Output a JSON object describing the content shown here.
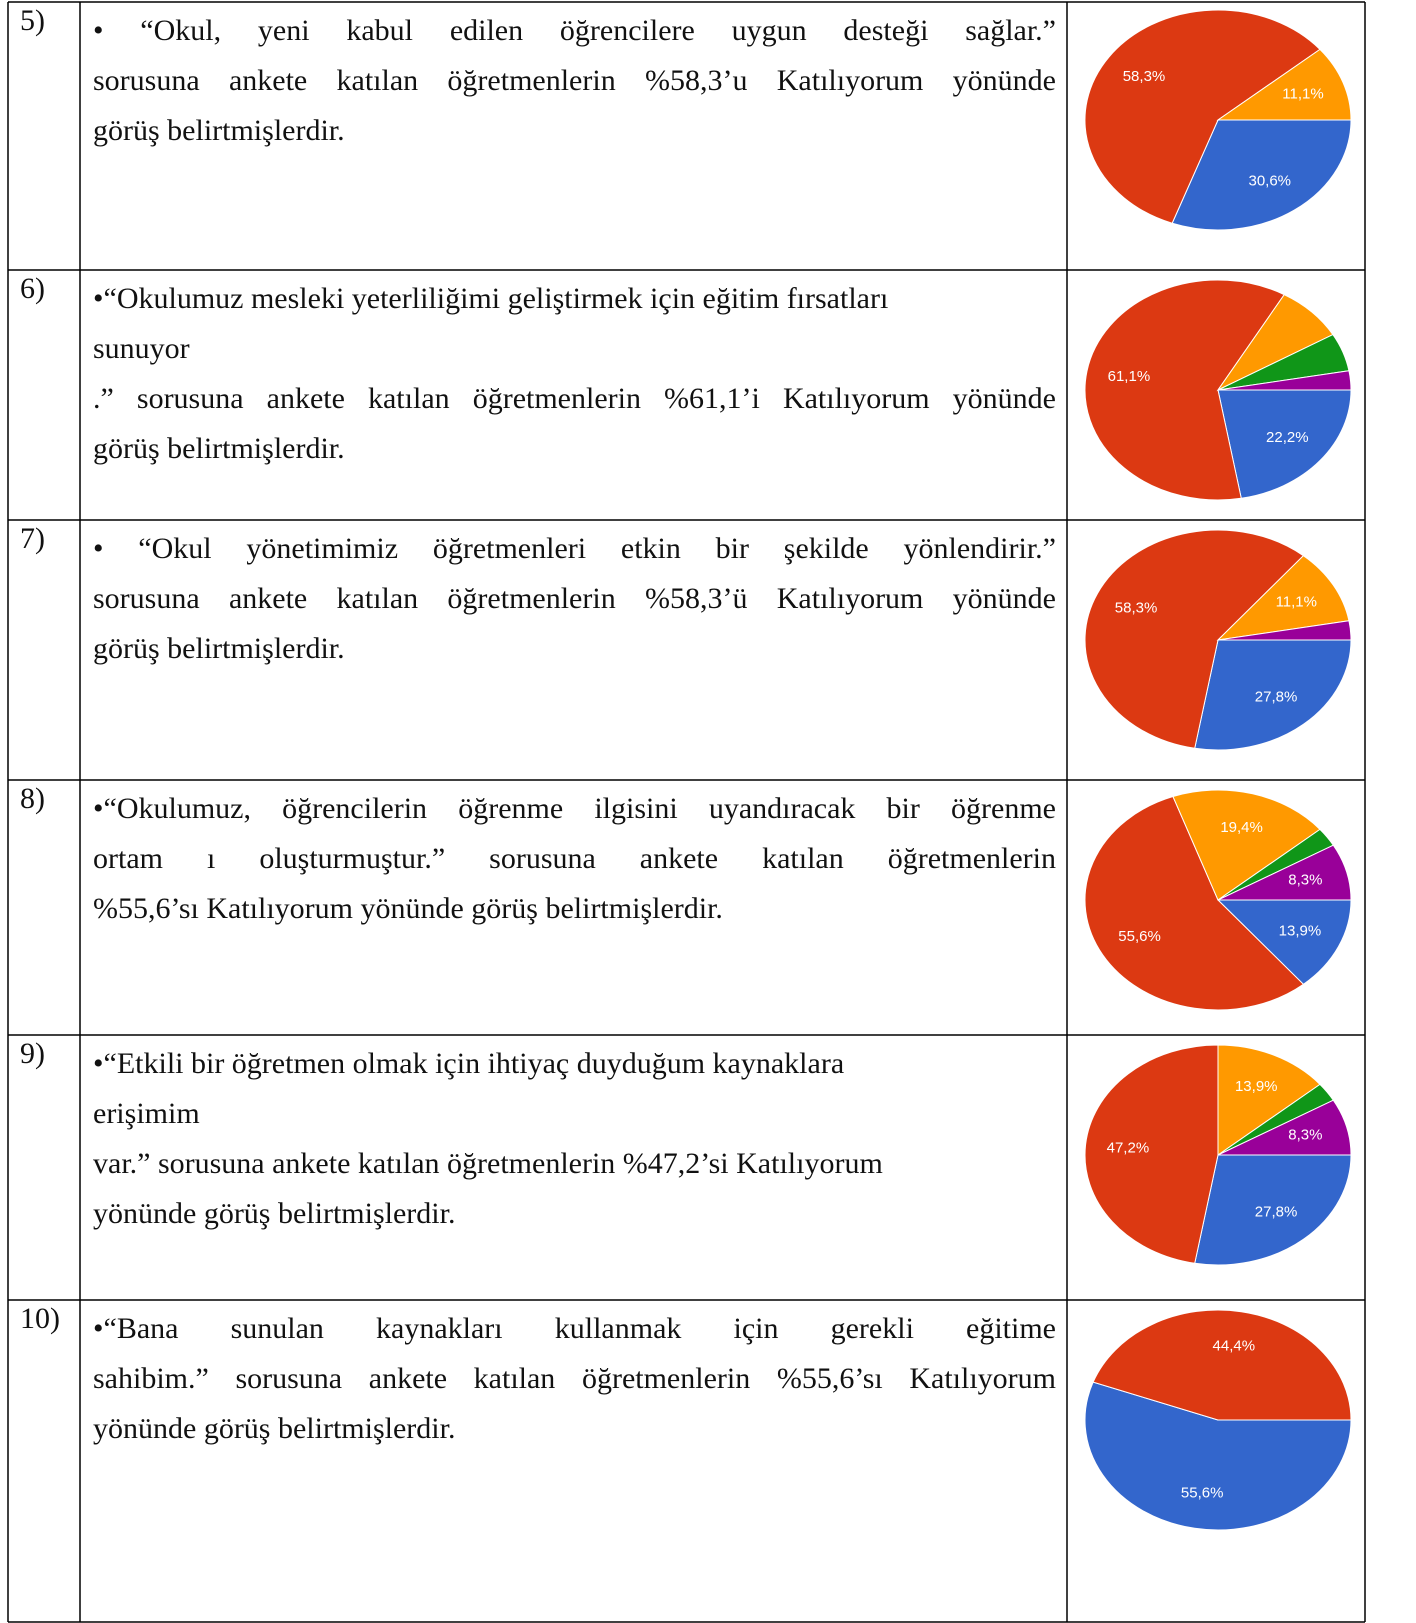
{
  "rows": [
    {
      "number": "5)",
      "paragraphs": [
        [
          "•   “Okul, yeni kabul edilen öğrencilere uygun desteği sağlar.”",
          "sorusuna ankete katılan öğretmenlerin %58,3’u Katılıyorum yönünde",
          "görüş belirtmişlerdir."
        ]
      ],
      "chart": {
        "type": "pie",
        "values": [
          30.6,
          58.3,
          11.1
        ],
        "value_labels": [
          "30,6%",
          "58,3%",
          "11,1%"
        ],
        "colors": [
          "#3366cc",
          "#dc3912",
          "#ff9900"
        ]
      }
    },
    {
      "number": "6)",
      "paragraphs": [
        [
          "•“Okulumuz mesleki yeterliliğimi geliştirmek için eğitim fırsatları"
        ],
        [
          "sunuyor"
        ],
        [
          ".” sorusuna ankete katılan öğretmenlerin %61,1’i Katılıyorum yönünde",
          "görüş belirtmişlerdir."
        ]
      ],
      "chart": {
        "type": "pie",
        "values": [
          22.2,
          61.1,
          8.3,
          5.6,
          2.8
        ],
        "value_labels": [
          "22,2%",
          "61,1%",
          null,
          null,
          null
        ],
        "colors": [
          "#3366cc",
          "#dc3912",
          "#ff9900",
          "#109618",
          "#990099"
        ]
      }
    },
    {
      "number": "7)",
      "paragraphs": [
        [
          "• “Okul yönetimimiz öğretmenleri etkin bir şekilde yönlendirir.”",
          "sorusuna ankete katılan öğretmenlerin %58,3’ü Katılıyorum yönünde",
          "görüş belirtmişlerdir."
        ]
      ],
      "chart": {
        "type": "pie",
        "values": [
          27.8,
          58.3,
          11.1,
          2.8
        ],
        "value_labels": [
          "27,8%",
          "58,3%",
          "11,1%",
          null
        ],
        "colors": [
          "#3366cc",
          "#dc3912",
          "#ff9900",
          "#990099"
        ]
      }
    },
    {
      "number": "8)",
      "paragraphs": [
        [
          "•“Okulumuz, öğrencilerin öğrenme ilgisini uyandıracak bir öğrenme",
          "ortam ı oluşturmuştur.” sorusuna ankete katılan öğretmenlerin",
          "%55,6’sı Katılıyorum yönünde görüş belirtmişlerdir."
        ]
      ],
      "chart": {
        "type": "pie",
        "values": [
          13.9,
          55.6,
          19.4,
          2.8,
          8.3
        ],
        "value_labels": [
          "13,9%",
          "55,6%",
          "19,4%",
          null,
          "8,3%"
        ],
        "colors": [
          "#3366cc",
          "#dc3912",
          "#ff9900",
          "#109618",
          "#990099"
        ]
      }
    },
    {
      "number": "9)",
      "paragraphs": [
        [
          "•“Etkili bir öğretmen olmak için ihtiyaç duyduğum kaynaklara"
        ],
        [
          "erişimim"
        ],
        [
          "var.” sorusuna ankete katılan öğretmenlerin %47,2’si Katılıyorum"
        ],
        [
          "yönünde görüş belirtmişlerdir."
        ]
      ],
      "chart": {
        "type": "pie",
        "values": [
          27.8,
          47.2,
          13.9,
          2.8,
          8.3
        ],
        "value_labels": [
          "27,8%",
          "47,2%",
          "13,9%",
          null,
          "8,3%"
        ],
        "colors": [
          "#3366cc",
          "#dc3912",
          "#ff9900",
          "#109618",
          "#990099"
        ]
      }
    },
    {
      "number": "10)",
      "paragraphs": [
        [
          "•“Bana        sunulan kaynakları kullanmak için gerekli eğitime",
          "sahibim.” sorusuna ankete katılan öğretmenlerin %55,6’sı Katılıyorum",
          "yönünde görüş belirtmişlerdir."
        ]
      ],
      "chart": {
        "type": "pie",
        "values": [
          55.6,
          44.4
        ],
        "value_labels": [
          "55,6%",
          "44,4%"
        ],
        "colors": [
          "#3366cc",
          "#dc3912"
        ]
      }
    }
  ]
}
